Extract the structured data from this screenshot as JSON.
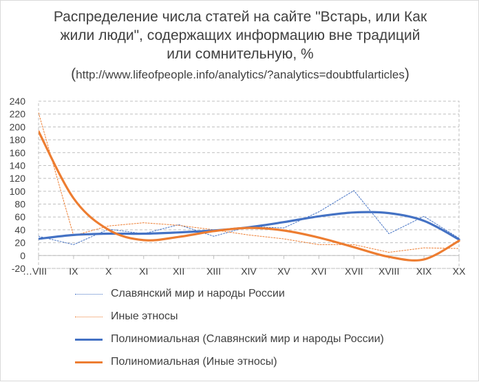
{
  "title_lines": [
    "Распределение числа статей на сайте \"Встарь, или Как",
    "жили люди\", содержащих информацию вне традиций",
    "или сомнительную, %"
  ],
  "subtitle": {
    "open": "(",
    "url": "http://www.lifeofpeople.info/analytics/?analytics=doubtfularticles",
    "close": ")"
  },
  "chart_data": {
    "type": "line",
    "categories": [
      "…VIII",
      "IX",
      "X",
      "XI",
      "XII",
      "XIII",
      "XIV",
      "XV",
      "XVI",
      "XVII",
      "XVIII",
      "XIX",
      "XX"
    ],
    "ylim": [
      -20,
      240
    ],
    "yticks": [
      -20,
      0,
      20,
      40,
      60,
      80,
      100,
      120,
      140,
      160,
      180,
      200,
      220,
      240
    ],
    "grid": true,
    "legend_position": "bottom",
    "series": [
      {
        "name": "Славянский мир и народы России",
        "values": [
          30,
          17,
          41,
          34,
          48,
          30,
          45,
          43,
          68,
          101,
          34,
          61,
          27
        ],
        "color": "#4472c4",
        "style": "dotted"
      },
      {
        "name": "Иные этносы",
        "values": [
          222,
          31,
          46,
          51,
          47,
          40,
          32,
          26,
          17,
          17,
          5,
          12,
          11
        ],
        "color": "#ed7d31",
        "style": "dotted"
      },
      {
        "name": "Полиномиальная (Славянский мир и народы России)",
        "values": [
          26,
          32,
          34,
          34,
          36,
          39,
          44,
          52,
          61,
          67,
          66,
          54,
          25
        ],
        "color": "#4472c4",
        "style": "trendline"
      },
      {
        "name": "Полиномиальная (Иные этносы)",
        "values": [
          193,
          89,
          40,
          24,
          29,
          38,
          43,
          39,
          28,
          13,
          -2,
          -6,
          23
        ],
        "color": "#ed7d31",
        "style": "trendline"
      }
    ]
  }
}
